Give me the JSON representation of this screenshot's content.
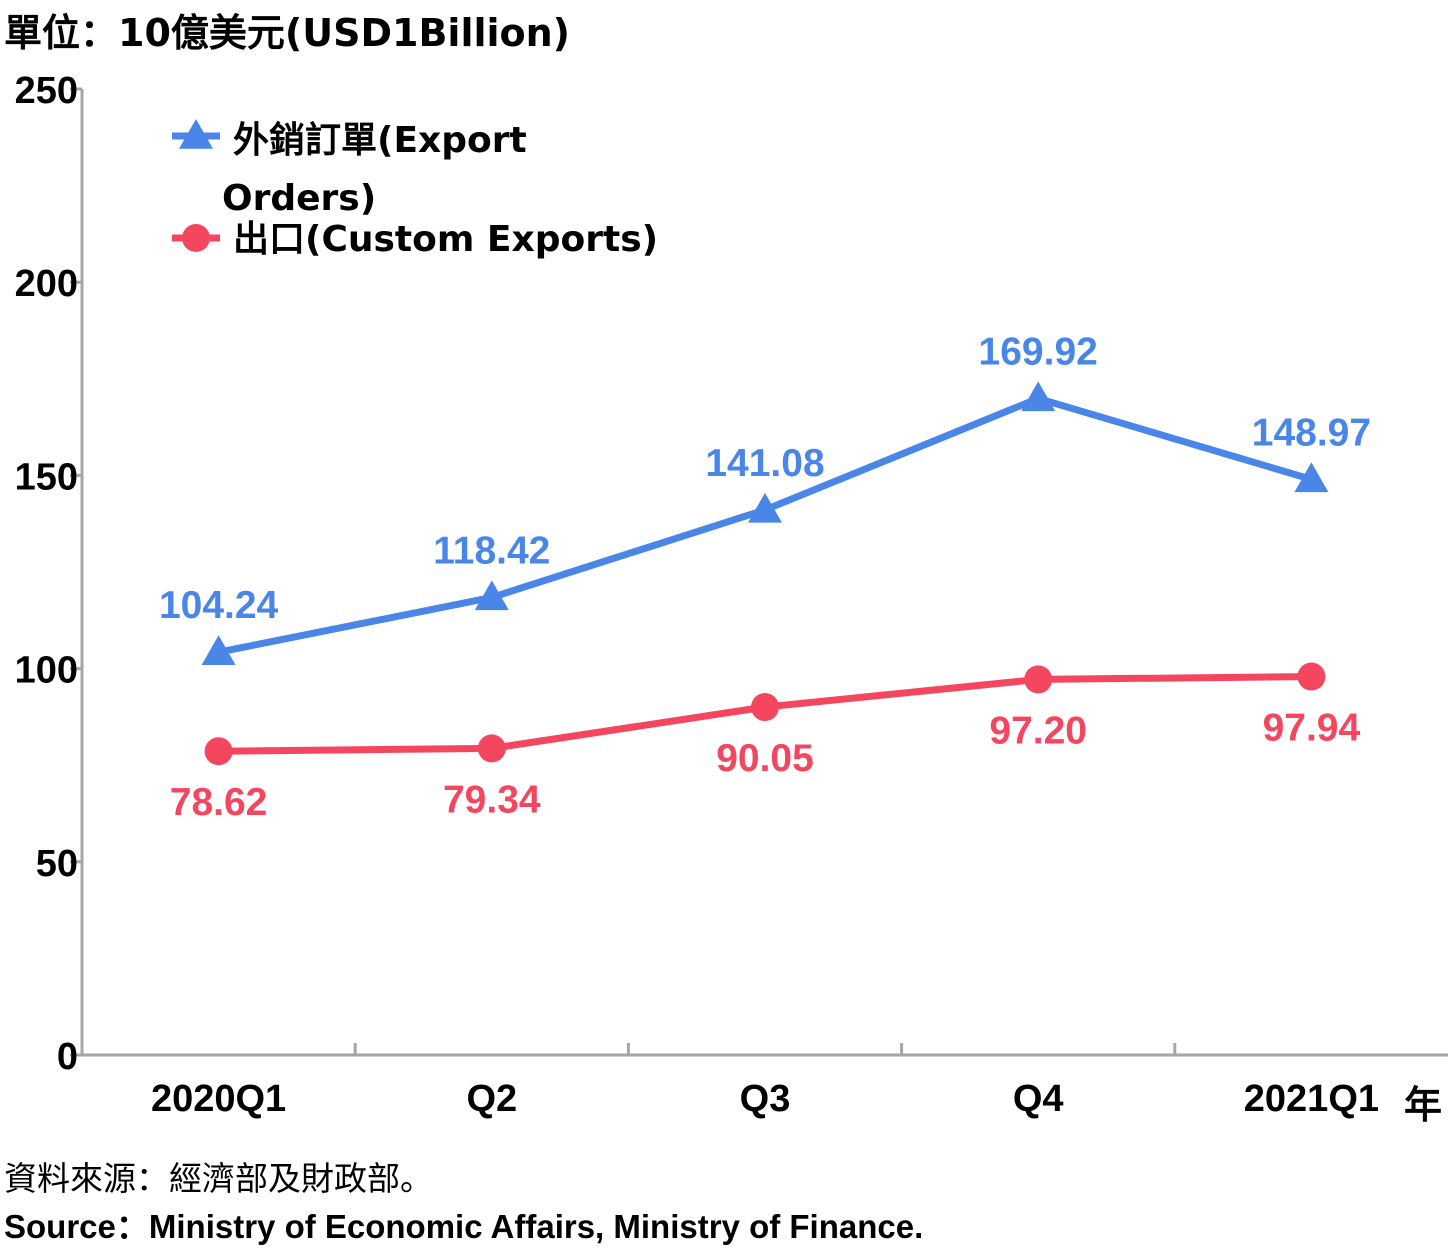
{
  "unit_label": "單位：10億美元(USD1Billion)",
  "year_suffix": "年",
  "source": {
    "zh": "資料來源：經濟部及財政部。",
    "en": "Source：Ministry of Economic Affairs, Ministry of Finance."
  },
  "chart_data": {
    "type": "line",
    "categories": [
      "2020Q1",
      "Q2",
      "Q3",
      "Q4",
      "2021Q1"
    ],
    "ylim": [
      0,
      250
    ],
    "yticks": [
      0,
      50,
      100,
      150,
      200,
      250
    ],
    "grid": false,
    "legend_position": "top-left",
    "series": [
      {
        "name": "外銷訂單(Export Orders)",
        "name_lines": [
          "外銷訂單(Export",
          "Orders)"
        ],
        "marker": "triangle",
        "color": "#4a86e8",
        "values": [
          104.24,
          118.42,
          141.08,
          169.92,
          148.97
        ],
        "labels": [
          "104.24",
          "118.42",
          "141.08",
          "169.92",
          "148.97"
        ]
      },
      {
        "name": "出口(Custom Exports)",
        "name_lines": [
          "出口(Custom Exports)"
        ],
        "marker": "circle",
        "color": "#f4475f",
        "values": [
          78.62,
          79.34,
          90.05,
          97.2,
          97.94
        ],
        "labels": [
          "78.62",
          "79.34",
          "90.05",
          "97.20",
          "97.94"
        ]
      }
    ]
  }
}
